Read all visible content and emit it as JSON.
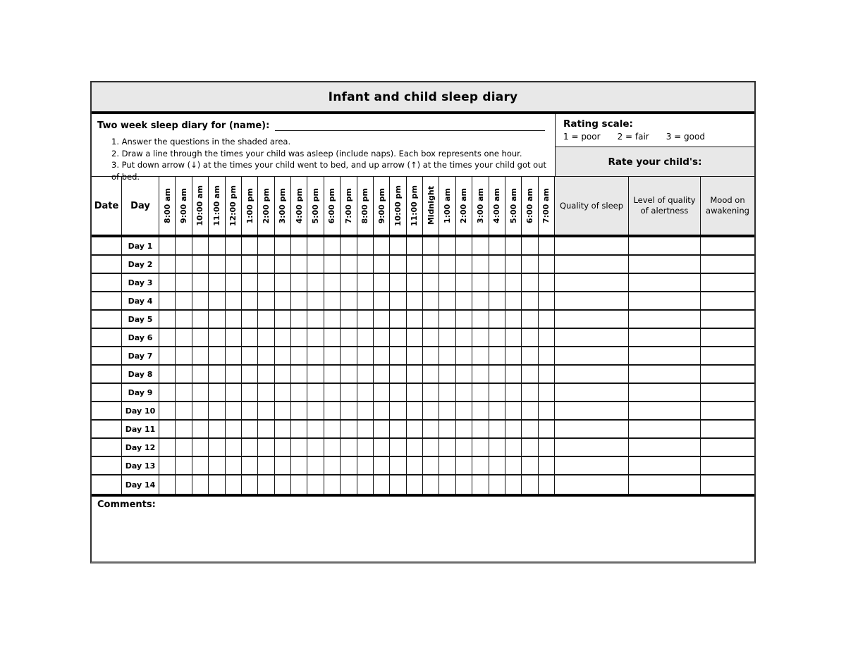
{
  "title": "Infant and child sleep diary",
  "name_section": {
    "label": "Two week sleep diary for (name):",
    "value": ""
  },
  "instructions": [
    "1. Answer the questions in the shaded area.",
    "2. Draw a line through the times your child was asleep (include naps). Each box represents one hour.",
    "3. Put down arrow (↓) at the times your child went to bed, and up arrow (↑) at the times your child got out of bed."
  ],
  "rating_scale": {
    "label": "Rating scale:",
    "values": [
      "1 = poor",
      "2 = fair",
      "3 = good"
    ],
    "rate_label": "Rate your child's:"
  },
  "table": {
    "date_header": "Date",
    "day_header": "Day",
    "time_headers": [
      "8:00 am",
      "9:00 am",
      "10:00 am",
      "11:00 am",
      "12:00 pm",
      "1:00 pm",
      "2:00 pm",
      "3:00 pm",
      "4:00 pm",
      "5:00 pm",
      "6:00 pm",
      "7:00 pm",
      "8:00 pm",
      "9:00 pm",
      "10:00 pm",
      "11:00 pm",
      "Midnight",
      "1:00 am",
      "2:00 am",
      "3:00 am",
      "4:00 am",
      "5:00 am",
      "6:00 am",
      "7:00 am"
    ],
    "rating_headers": [
      "Quality of sleep",
      "Level of quality of alertness",
      "Mood on awakening"
    ],
    "rows": [
      "Day 1",
      "Day 2",
      "Day 3",
      "Day 4",
      "Day 5",
      "Day 6",
      "Day 7",
      "Day 8",
      "Day 9",
      "Day 10",
      "Day 11",
      "Day 12",
      "Day 13",
      "Day 14"
    ]
  },
  "comments_label": "Comments:",
  "colors": {
    "shaded": "#e8e8e8",
    "grid": "#141414",
    "thick_rule": "#000000"
  }
}
